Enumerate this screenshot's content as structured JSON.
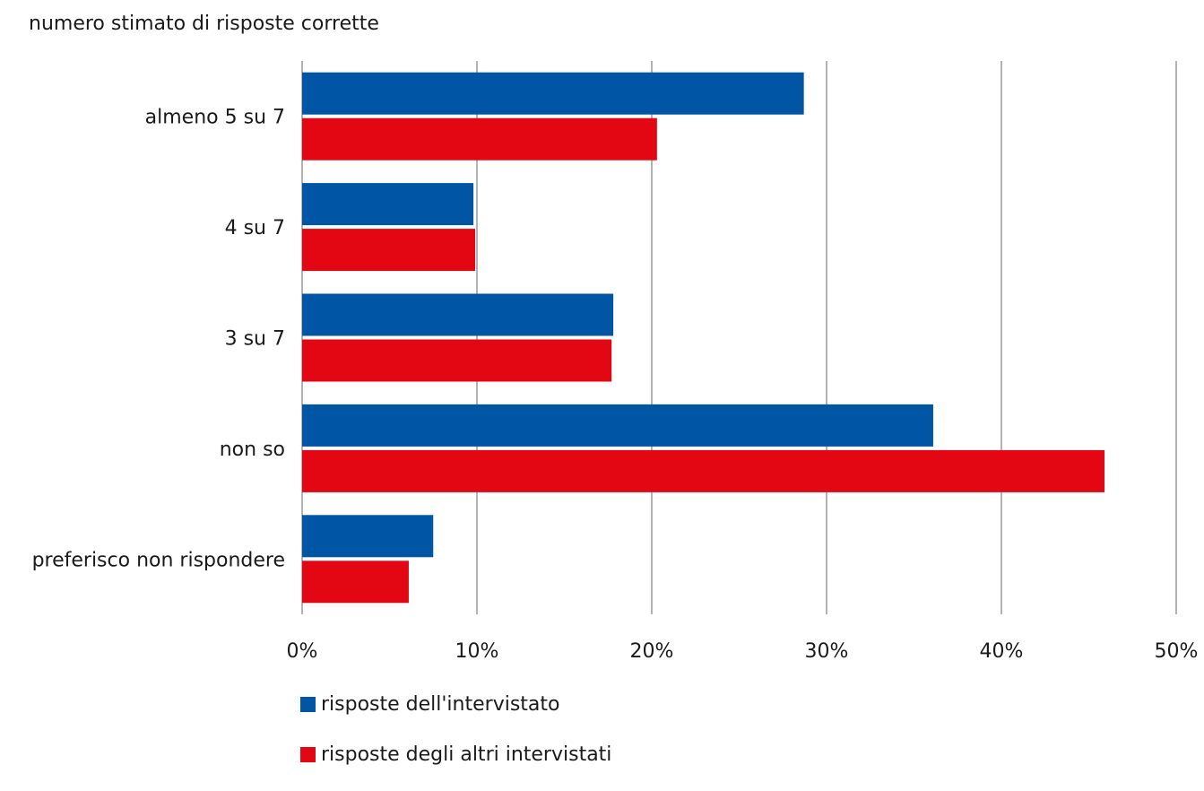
{
  "chart_data": {
    "type": "bar",
    "orientation": "horizontal",
    "title": "numero stimato di risposte corrette",
    "categories": [
      "almeno 5 su 7",
      "4 su 7",
      "3 su 7",
      "non so",
      "preferisco non rispondere"
    ],
    "series": [
      {
        "name": "risposte dell'intervistato",
        "color": "#0055a5",
        "values": [
          28.7,
          9.8,
          17.8,
          36.1,
          7.5
        ]
      },
      {
        "name": "risposte degli altri intervistati",
        "color": "#e30613",
        "values": [
          20.3,
          9.9,
          17.7,
          45.9,
          6.1
        ]
      }
    ],
    "xticks": [
      "0%",
      "10%",
      "20%",
      "30%",
      "40%",
      "50%"
    ],
    "xlim": [
      0,
      50
    ],
    "unit": "%",
    "grid": true,
    "legend_position": "bottom"
  }
}
